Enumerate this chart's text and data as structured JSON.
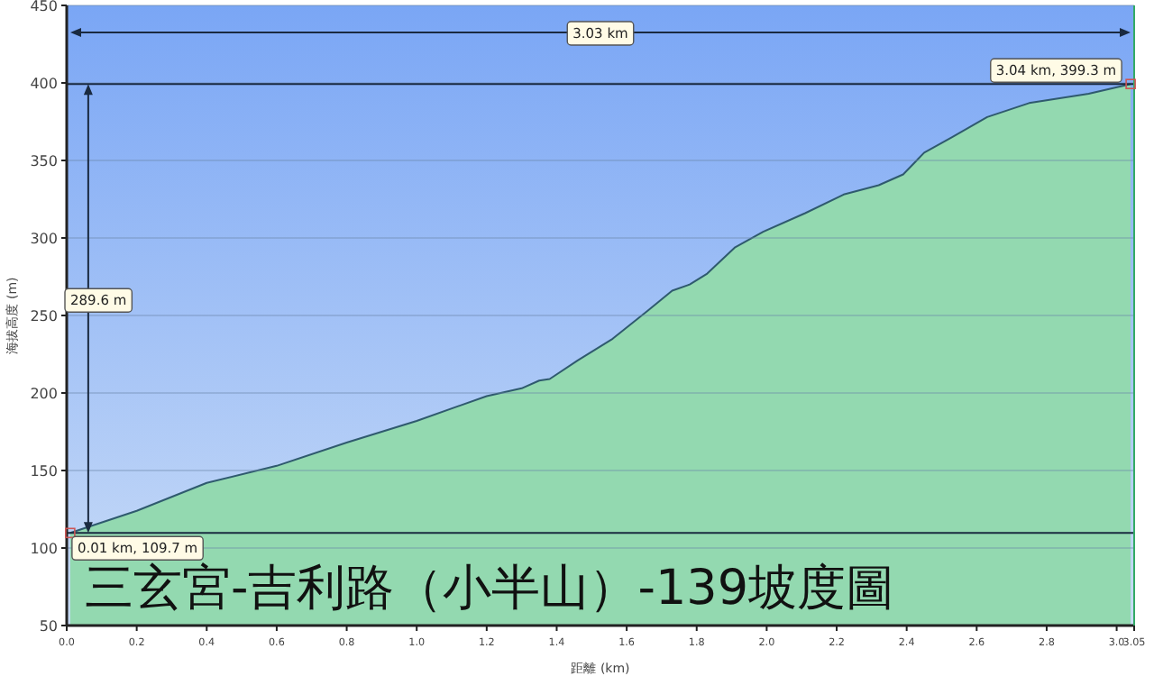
{
  "chart_data": {
    "type": "area",
    "title": "三玄宮-吉利路（小半山）-139坡度圖",
    "xlabel": "距離 (km)",
    "ylabel": "海拔高度 (m)",
    "x": [
      0.01,
      0.2,
      0.4,
      0.6,
      0.8,
      1.0,
      1.2,
      1.3,
      1.35,
      1.38,
      1.46,
      1.56,
      1.66,
      1.73,
      1.78,
      1.83,
      1.91,
      1.99,
      2.11,
      2.22,
      2.32,
      2.39,
      2.45,
      2.53,
      2.63,
      2.75,
      2.92,
      3.04
    ],
    "series": [
      {
        "color": "#2f5a6e",
        "values": [
          109.7,
          124,
          142,
          153,
          168,
          182,
          198,
          203,
          208,
          209,
          221,
          235,
          253,
          266,
          270,
          277,
          294,
          304,
          316,
          328,
          334,
          341,
          355,
          365,
          378,
          387,
          393,
          399.3
        ]
      }
    ],
    "xlim": [
      0,
      3.05
    ],
    "ylim": [
      50,
      450
    ],
    "xticks": [
      {
        "value": 0,
        "label": "0.0"
      },
      0.2,
      0.4,
      0.6,
      0.8,
      {
        "value": 1,
        "label": "1.0"
      },
      1.2,
      1.4,
      1.6,
      1.8,
      {
        "value": 2,
        "label": "2.0"
      },
      2.2,
      2.4,
      2.6,
      2.8,
      {
        "value": 3,
        "label": "3.0"
      },
      3.05
    ],
    "yticks": [
      50,
      100,
      150,
      200,
      250,
      300,
      350,
      400,
      450
    ],
    "grid": "y",
    "ref_lines": [
      {
        "axis": "y",
        "value": 399.3,
        "color": "#1a2a40"
      },
      {
        "axis": "y",
        "value": 109.7,
        "color": "#1a2a40"
      }
    ],
    "annotations": [
      {
        "text": "0.01 km, 109.7 m",
        "x": 0.01,
        "y": 109.7
      },
      {
        "text": "3.04 km, 399.3 m",
        "x": 3.04,
        "y": 399.3
      },
      "289.6 m",
      "3.03 km"
    ]
  }
}
